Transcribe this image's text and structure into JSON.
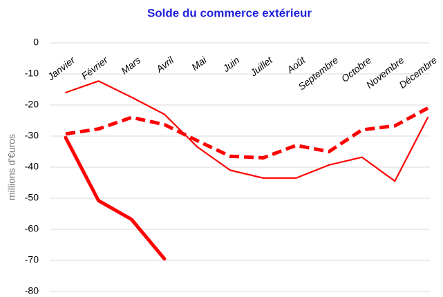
{
  "chart_data": {
    "type": "line",
    "title": "Solde du commerce extérieur",
    "y_label": "millions  d'€uros",
    "categories": [
      "Janvier",
      "Février",
      "Mars",
      "Avril",
      "Mai",
      "Juin",
      "Juillet",
      "Août",
      "Septembre",
      "Octobre",
      "Novembre",
      "Décembre"
    ],
    "series": [
      {
        "color": "#ff0000",
        "dashed": false,
        "thick": false,
        "values": [
          -16,
          -12.3,
          -17.5,
          -23,
          -33.5,
          -41,
          -43.5,
          -43.5,
          -39.3,
          -36.8,
          -44.5,
          -24
        ]
      },
      {
        "color": "#ff0000",
        "dashed": true,
        "thick": true,
        "values": [
          -29.3,
          -27.7,
          -24,
          -26.3,
          -31.5,
          -36.5,
          -37,
          -33,
          -35,
          -28,
          -26.7,
          -21
        ]
      },
      {
        "color": "#ff0000",
        "dashed": false,
        "thick": true,
        "values": [
          -30.5,
          -50.8,
          -56.8,
          -69.5,
          null,
          null,
          null,
          null,
          null,
          null,
          null,
          null
        ]
      }
    ],
    "ylim": [
      -80,
      0
    ],
    "yticks": [
      -80,
      -70,
      -60,
      -50,
      -40,
      -30,
      -20,
      -10,
      0
    ],
    "grid": true
  }
}
